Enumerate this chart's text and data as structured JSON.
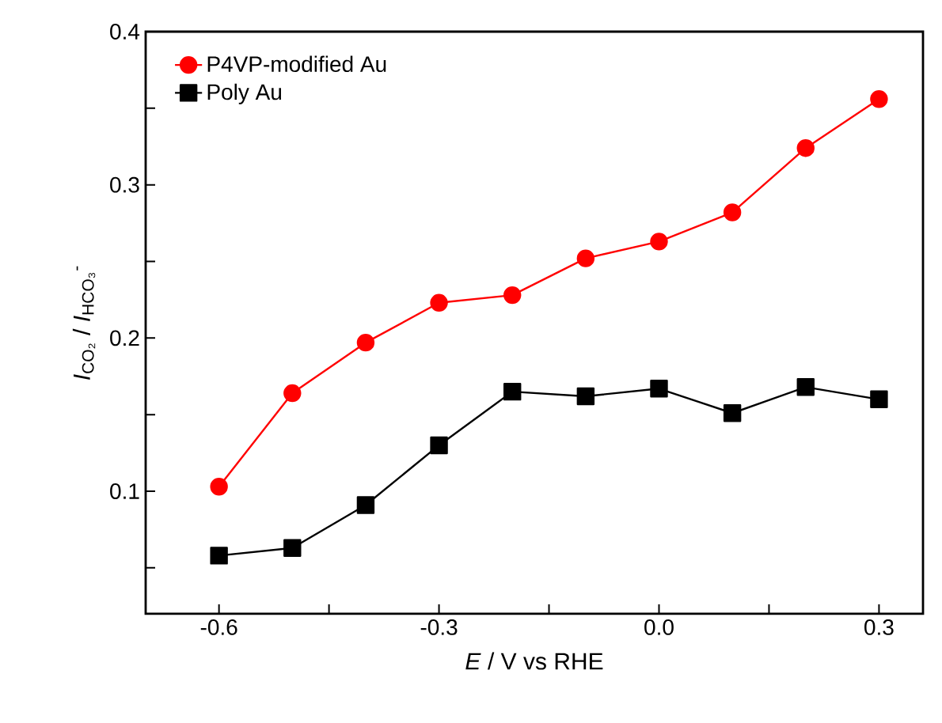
{
  "chart_data": {
    "type": "line",
    "xlabel": "*E*  /  V vs RHE",
    "ylabel": "*I*$_{CO₂}$ / *I*$_{HCO₃}$$^{-}$",
    "x": [
      -0.6,
      -0.5,
      -0.4,
      -0.3,
      -0.2,
      -0.1,
      0.0,
      0.1,
      0.2,
      0.3
    ],
    "series": [
      {
        "name": "P4VP-modified Au",
        "color": "#ff0000",
        "marker": "circle",
        "values": [
          0.103,
          0.164,
          0.197,
          0.223,
          0.228,
          0.252,
          0.263,
          0.282,
          0.324,
          0.356
        ]
      },
      {
        "name": "Poly Au",
        "color": "#000000",
        "marker": "square",
        "values": [
          0.058,
          0.063,
          0.091,
          0.13,
          0.165,
          0.162,
          0.167,
          0.151,
          0.168,
          0.16
        ]
      }
    ],
    "xlim": [
      -0.7,
      0.36
    ],
    "ylim": [
      0.02,
      0.4
    ],
    "xticks": [
      -0.6,
      {
        "value": -0.45,
        "label": null
      },
      -0.3,
      {
        "value": -0.15,
        "label": null
      },
      {
        "value": 0,
        "label": "0.0"
      },
      {
        "value": 0.15,
        "label": null
      },
      0.3
    ],
    "yticks": [
      {
        "value": 0.05,
        "label": null
      },
      0.1,
      {
        "value": 0.15,
        "label": null
      },
      0.2,
      {
        "value": 0.25,
        "label": null
      },
      0.3,
      {
        "value": 0.35,
        "label": null
      },
      0.4
    ],
    "legend": "top left",
    "line_style": "solid"
  }
}
